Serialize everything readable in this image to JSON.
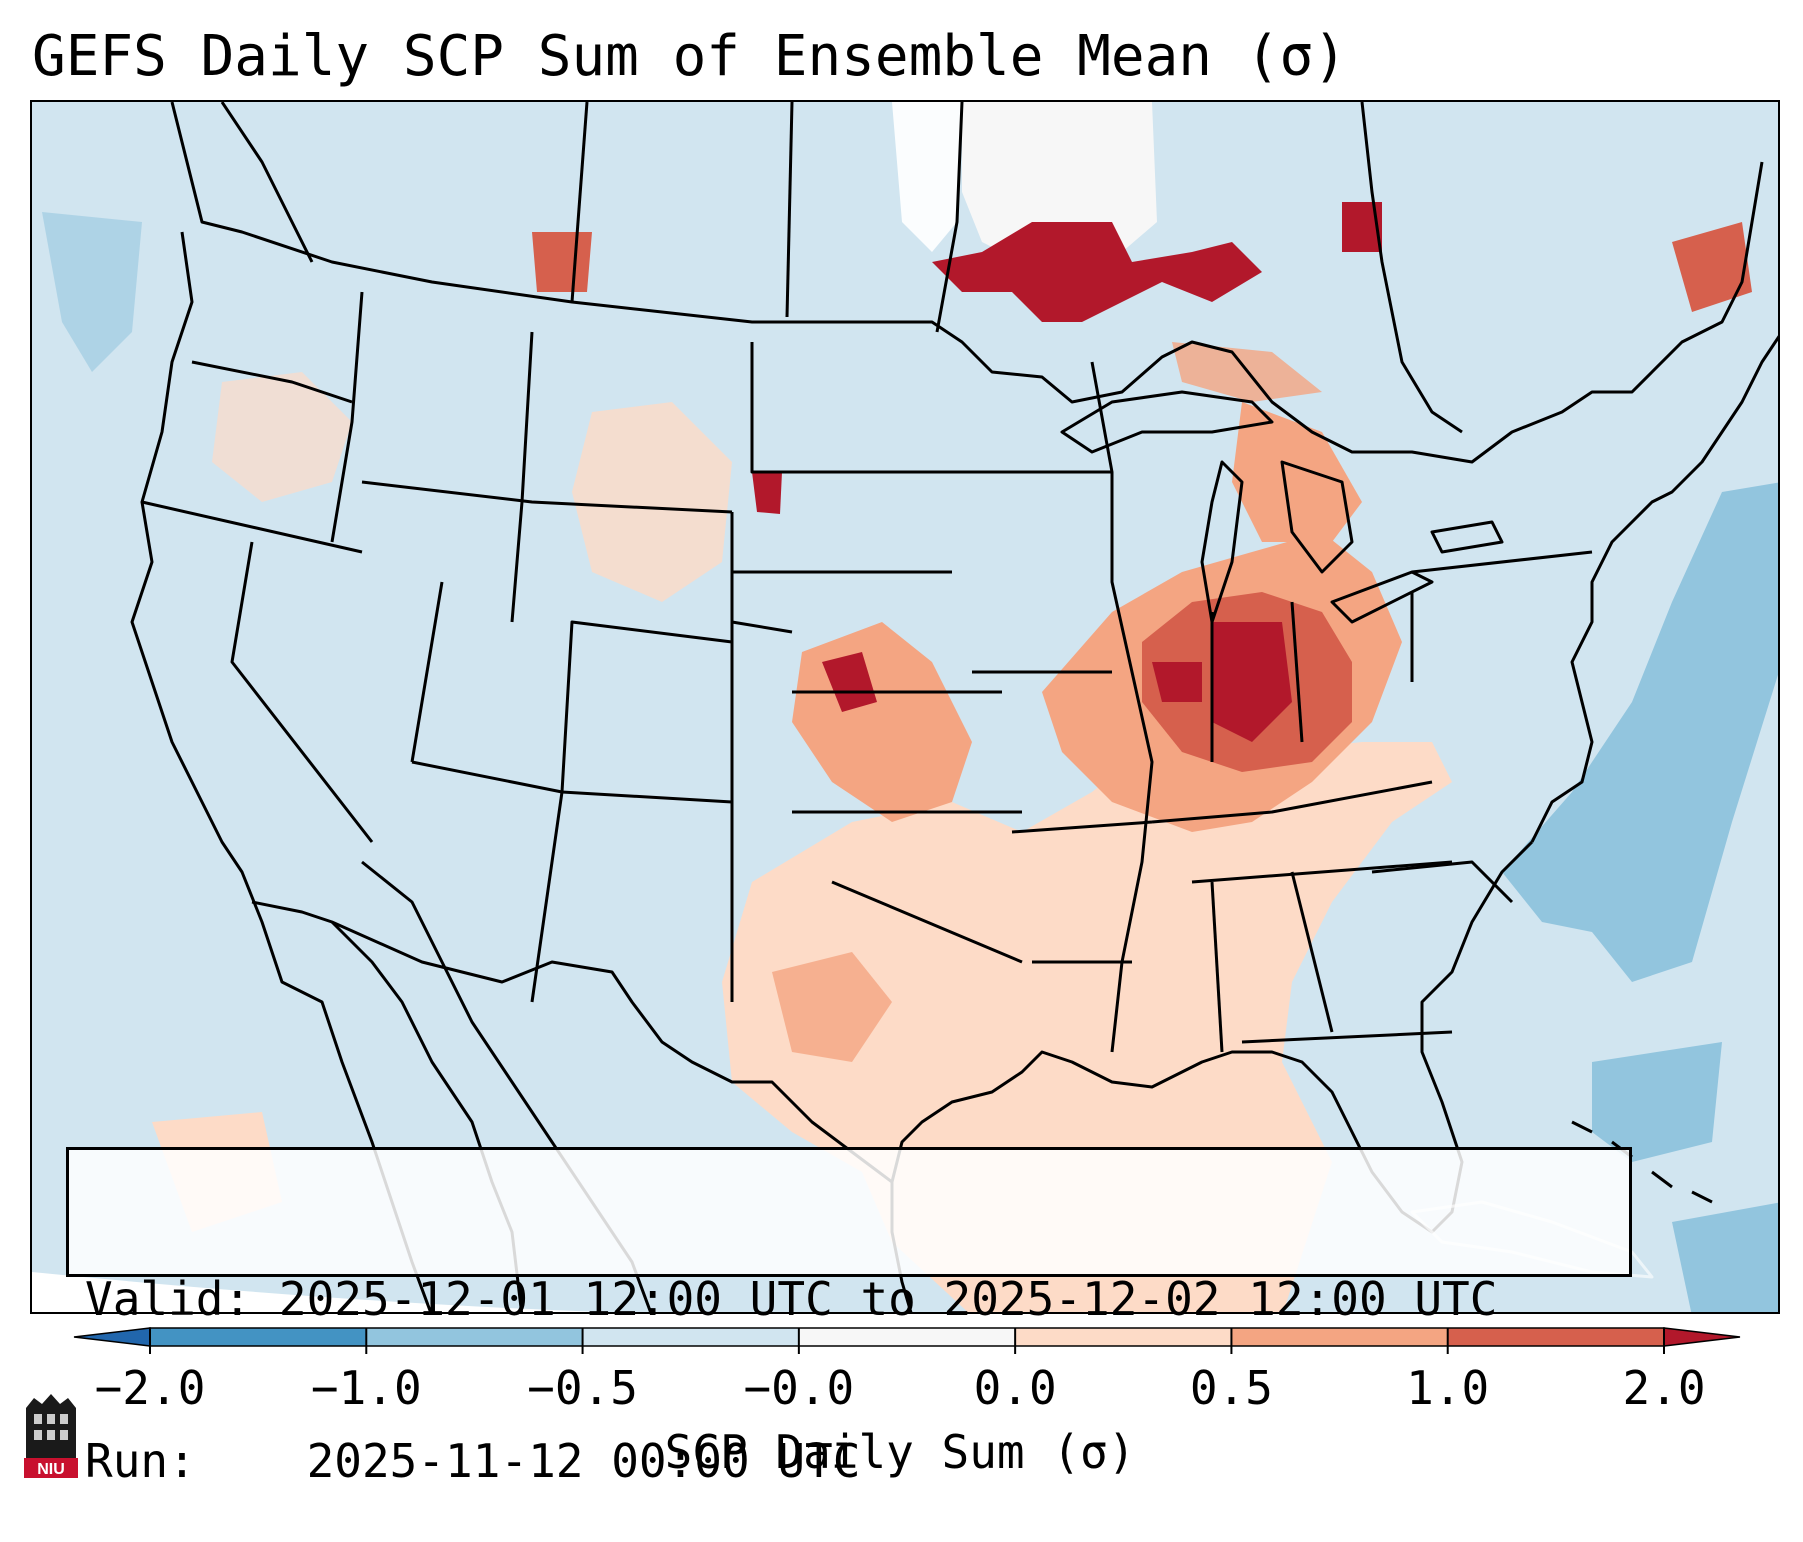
{
  "title": "GEFS Daily SCP Sum of Ensemble Mean (σ)",
  "info": {
    "valid_label": "Valid:",
    "valid_value": "2025-12-01 12:00 UTC to 2025-12-02 12:00 UTC",
    "run_label": "Run:",
    "run_value": "2025-11-12 00:00 UTC"
  },
  "colorbar": {
    "label": "SCP Daily Sum (σ)",
    "ticks": [
      "−2.0",
      "−1.0",
      "−0.5",
      "−0.0",
      "0.0",
      "0.5",
      "1.0",
      "2.0"
    ],
    "bins": [
      {
        "range": "below -2.0",
        "color": "#2166ac"
      },
      {
        "range": "-2.0 to -1.0",
        "color": "#4393c3"
      },
      {
        "range": "-1.0 to -0.5",
        "color": "#92c5de"
      },
      {
        "range": "-0.5 to -0.0",
        "color": "#d1e5f0"
      },
      {
        "range": "-0.0 to 0.0",
        "color": "#f7f7f7"
      },
      {
        "range": "0.0 to 0.5",
        "color": "#fddbc7"
      },
      {
        "range": "0.5 to 1.0",
        "color": "#f4a582"
      },
      {
        "range": "1.0 to 2.0",
        "color": "#d6604d"
      },
      {
        "range": "above 2.0",
        "color": "#b2182b"
      }
    ]
  },
  "logo": {
    "text": "NIU",
    "name": "niu-logo"
  },
  "map": {
    "background_value": "-0.5 to -0.0",
    "regions": [
      {
        "name": "midwest-ohio-valley",
        "level": "1.0 to 2.0"
      },
      {
        "name": "southern-plains-gulf",
        "level": "0.0 to 0.5"
      },
      {
        "name": "kansas-oklahoma",
        "level": "0.5 to 1.0"
      },
      {
        "name": "upper-midwest-canada",
        "level": "above 2.0"
      },
      {
        "name": "western-atlantic",
        "level": "-1.0 to -0.5"
      },
      {
        "name": "central-canada-missing",
        "level": "-0.0 to 0.0"
      }
    ]
  }
}
